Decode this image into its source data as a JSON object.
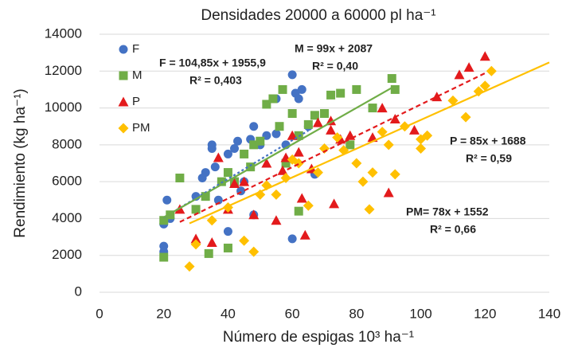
{
  "chart_data": {
    "type": "scatter",
    "title": "Densidades 20000 a 60000 pl ha⁻¹",
    "x_label": "Número de espigas 10³ ha⁻¹",
    "y_label": "Rendimiento (kg ha⁻¹)",
    "xlim": [
      0,
      140
    ],
    "xticks": [
      0,
      20,
      40,
      60,
      80,
      100,
      120,
      140
    ],
    "ylim": [
      0,
      14000
    ],
    "yticks": [
      0,
      2000,
      4000,
      6000,
      8000,
      10000,
      12000,
      14000
    ],
    "series": [
      {
        "name": "F",
        "color": "#4472c4",
        "marker": "circle",
        "x": [
          20,
          20,
          20,
          21,
          22,
          30,
          32,
          33,
          35,
          35,
          36,
          37,
          40,
          40,
          42,
          43,
          45,
          47,
          48,
          50,
          52,
          55,
          55,
          58,
          60,
          61,
          62,
          63,
          60,
          65,
          67,
          48,
          44
        ],
        "values": [
          3700,
          2500,
          2200,
          5000,
          4000,
          5200,
          6200,
          6500,
          7800,
          8000,
          6800,
          5000,
          7500,
          3300,
          7800,
          8200,
          6000,
          8300,
          4200,
          8000,
          8500,
          8600,
          10500,
          8000,
          11800,
          10800,
          10500,
          11000,
          2900,
          9000,
          6400,
          9000,
          5500
        ],
        "trend": {
          "slope": 104.85,
          "intercept": 1955.9,
          "x_start": 20,
          "x_end": 65,
          "dash": "3,3"
        },
        "annotation": [
          "F = 104,85x + 1955,9",
          "R² = 0,403"
        ]
      },
      {
        "name": "M",
        "color": "#70ad47",
        "marker": "square",
        "x": [
          20,
          20,
          22,
          25,
          30,
          33,
          34,
          38,
          40,
          40,
          42,
          45,
          47,
          48,
          50,
          52,
          54,
          56,
          57,
          58,
          60,
          62,
          65,
          67,
          70,
          72,
          75,
          78,
          80,
          85,
          91,
          92,
          62
        ],
        "values": [
          1900,
          3900,
          4200,
          6200,
          4500,
          5200,
          2100,
          6000,
          6500,
          2400,
          6000,
          7500,
          6800,
          8000,
          8200,
          10200,
          10500,
          9000,
          11000,
          7000,
          9700,
          8500,
          9100,
          9600,
          9700,
          10700,
          10800,
          8000,
          11000,
          10000,
          11600,
          11000,
          4400
        ],
        "trend": {
          "slope": 99,
          "intercept": 2087,
          "x_start": 20,
          "x_end": 91,
          "dash": "none"
        },
        "annotation": [
          "M = 99x + 2087",
          "R² = 0,40"
        ]
      },
      {
        "name": "P",
        "color": "#e31a1c",
        "marker": "triangle",
        "x": [
          25,
          30,
          35,
          37,
          40,
          42,
          45,
          48,
          52,
          55,
          57,
          58,
          60,
          62,
          63,
          64,
          66,
          68,
          72,
          73,
          75,
          78,
          85,
          88,
          90,
          92,
          98,
          105,
          112,
          115,
          120,
          72
        ],
        "values": [
          4500,
          2900,
          2700,
          7300,
          4500,
          5900,
          6000,
          4200,
          7000,
          3900,
          6600,
          7300,
          8500,
          7600,
          5100,
          3100,
          6700,
          9200,
          9300,
          4800,
          8300,
          8500,
          8400,
          10000,
          5400,
          9400,
          8800,
          10600,
          11800,
          12200,
          12800,
          8800
        ],
        "trend": {
          "slope": 85,
          "intercept": 1688,
          "x_start": 25,
          "x_end": 120,
          "dash": "6,4"
        },
        "annotation": [
          "P = 85x + 1688",
          "R² = 0,59"
        ]
      },
      {
        "name": "PM",
        "color": "#ffc000",
        "marker": "diamond",
        "x": [
          28,
          30,
          35,
          40,
          45,
          48,
          50,
          52,
          55,
          58,
          60,
          62,
          65,
          68,
          70,
          74,
          76,
          80,
          82,
          84,
          85,
          90,
          92,
          95,
          100,
          100,
          102,
          110,
          114,
          118,
          120,
          122,
          88
        ],
        "values": [
          1400,
          2600,
          3900,
          4600,
          2800,
          2200,
          5300,
          5800,
          5300,
          6200,
          7200,
          7000,
          4700,
          6500,
          7800,
          8400,
          7700,
          7000,
          6000,
          4500,
          6500,
          8000,
          6400,
          9000,
          8300,
          7800,
          8500,
          10400,
          9500,
          10900,
          11200,
          12000,
          8700
        ],
        "trend": {
          "slope": 78,
          "intercept": 1552,
          "x_start": 28,
          "x_end": 140,
          "dash": "none"
        },
        "annotation": [
          "PM= 78x + 1552",
          "R² = 0,66"
        ]
      }
    ]
  }
}
